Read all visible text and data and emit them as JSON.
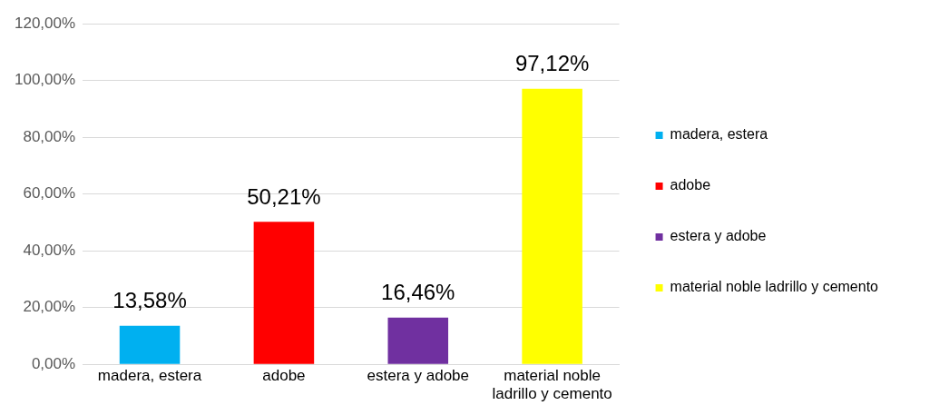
{
  "chart_data": {
    "type": "bar",
    "categories": [
      "madera, estera",
      "adobe",
      "estera y adobe",
      "material noble ladrillo y cemento"
    ],
    "series": [
      {
        "name": "madera, estera",
        "color": "#00b0f0",
        "values": [
          13.58,
          null,
          null,
          null
        ],
        "value_labels": [
          "13,58%",
          null,
          null,
          null
        ]
      },
      {
        "name": "adobe",
        "color": "#ff0000",
        "values": [
          null,
          50.21,
          null,
          null
        ],
        "value_labels": [
          null,
          "50,21%",
          null,
          null
        ]
      },
      {
        "name": "estera y adobe",
        "color": "#7030a0",
        "values": [
          null,
          null,
          16.46,
          null
        ],
        "value_labels": [
          null,
          null,
          "16,46%",
          null
        ]
      },
      {
        "name": "material noble ladrillo y cemento",
        "color": "#ffff00",
        "values": [
          null,
          null,
          null,
          97.12
        ],
        "value_labels": [
          null,
          null,
          null,
          "97,12%"
        ]
      }
    ],
    "ylim": [
      0,
      120
    ],
    "yticks": [
      {
        "value": 0,
        "label": "0,00%"
      },
      {
        "value": 20,
        "label": "20,00%"
      },
      {
        "value": 40,
        "label": "40,00%"
      },
      {
        "value": 60,
        "label": "60,00%"
      },
      {
        "value": 80,
        "label": "80,00%"
      },
      {
        "value": 100,
        "label": "100,00%"
      },
      {
        "value": 120,
        "label": "120,00%"
      }
    ],
    "grid": "y",
    "legend": "right"
  }
}
